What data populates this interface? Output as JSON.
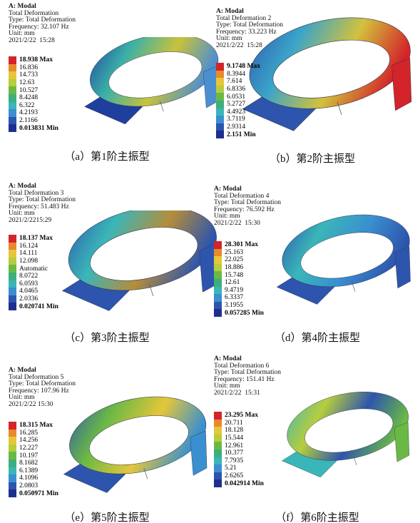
{
  "panels": [
    {
      "header": [
        "A: Modal",
        "Total Deformation",
        "Type: Total Deformation",
        "Frequency: 32.107 Hz",
        "Unit: mm",
        "2021/2/22  15:28"
      ],
      "legend": [
        "18.938 Max",
        "16.836",
        "14.733",
        "12.63",
        "10.527",
        "8.4248",
        "6.322",
        "4.2193",
        "2.1166",
        "0.013831 Min"
      ],
      "caption": "（a）第1阶主振型"
    },
    {
      "header": [
        "A: Modal",
        "Total Deformation 2",
        "Type: Total Deformation",
        "Frequency: 33.223 Hz",
        "Unit: mm",
        "2021/2/22  15:28"
      ],
      "legend": [
        "9.1748 Max",
        "8.3944",
        "7.614",
        "6.8336",
        "6.0531",
        "5.2727",
        "4.4923",
        "3.7119",
        "2.9314",
        "2.151 Min"
      ],
      "caption": "（b）第2阶主振型"
    },
    {
      "header": [
        "A: Modal",
        "Total Deformation 3",
        "Type: Total Deformation",
        "Frequency: 51.483 Hz",
        "Unit: mm",
        "2021/2/2215:29"
      ],
      "legend": [
        "18.137 Max",
        "16.124",
        "14.111",
        "12.098",
        "Automatic",
        "8.0722",
        "6.0593",
        "4.0465",
        "2.0336",
        "0.020741 Min"
      ],
      "caption": "（c）第3阶主振型"
    },
    {
      "header": [
        "A: Modal",
        "Total Deformation 4",
        "Type: Total Deformation",
        "Frequency: 76.592 Hz",
        "Unit: mm",
        "2021/2/22  15:30"
      ],
      "legend": [
        "28.301 Max",
        "25.163",
        "22.025",
        "18.886",
        "15.748",
        "12.61",
        "9.4719",
        "6.3337",
        "3.1955",
        "0.057285 Min"
      ],
      "caption": "（d）第4阶主振型"
    },
    {
      "header": [
        "A: Modal",
        "Total Deformation 5",
        "Type: Total Deformation",
        "Frequency: 107.96 Hz",
        "Unit: mm",
        "2021/2/22 15:30"
      ],
      "legend": [
        "18.315 Max",
        "16.285",
        "14.256",
        "12.227",
        "10.197",
        "8.1682",
        "6.1389",
        "4.1096",
        "2.0803",
        "0.050971 Min"
      ],
      "caption": "（e）第5阶主振型"
    },
    {
      "header": [
        "A: Modal",
        "Total Deformation 6",
        "Type: Total Deformation",
        "Frequency: 151.41 Hz",
        "Unit: mm",
        "2021/2/22  15:31"
      ],
      "legend": [
        "23.295 Max",
        "20.711",
        "18.128",
        "15.544",
        "12.961",
        "10.377",
        "7.7935",
        "5.21",
        "2.6265",
        "0.042914 Min"
      ],
      "caption": "（f）第6阶主振型"
    }
  ]
}
